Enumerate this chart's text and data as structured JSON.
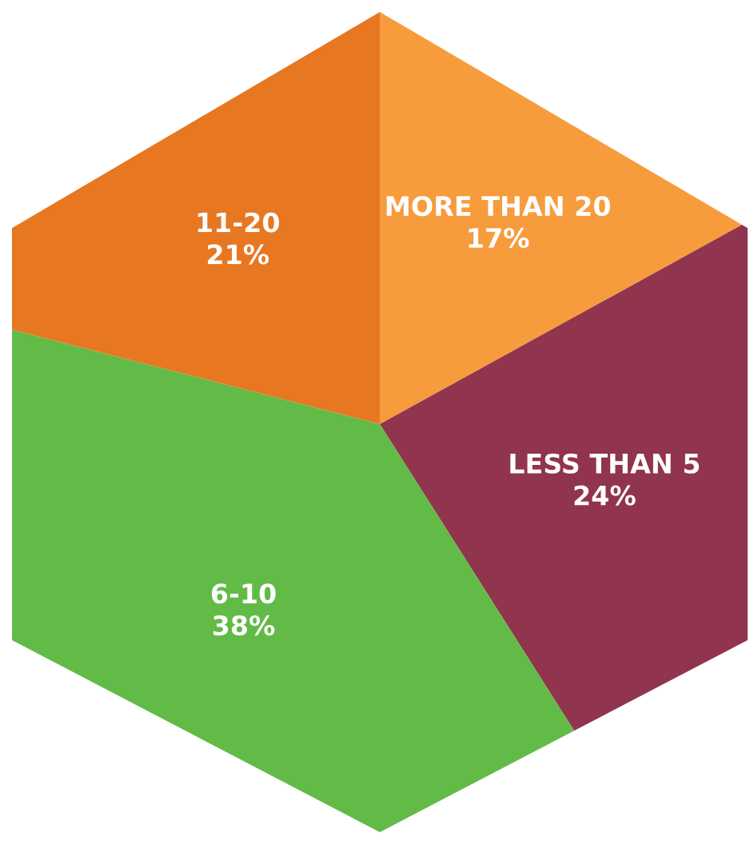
{
  "chart_data": {
    "type": "pie",
    "categories": [
      "MORE THAN 20",
      "LESS THAN 5",
      "6-10",
      "11-20"
    ],
    "values": [
      17,
      24,
      38,
      21
    ],
    "colors": [
      "#f79c3d",
      "#91344e",
      "#62bb47",
      "#e87722"
    ],
    "value_labels": [
      "17%",
      "24%",
      "38%",
      "21%"
    ]
  }
}
